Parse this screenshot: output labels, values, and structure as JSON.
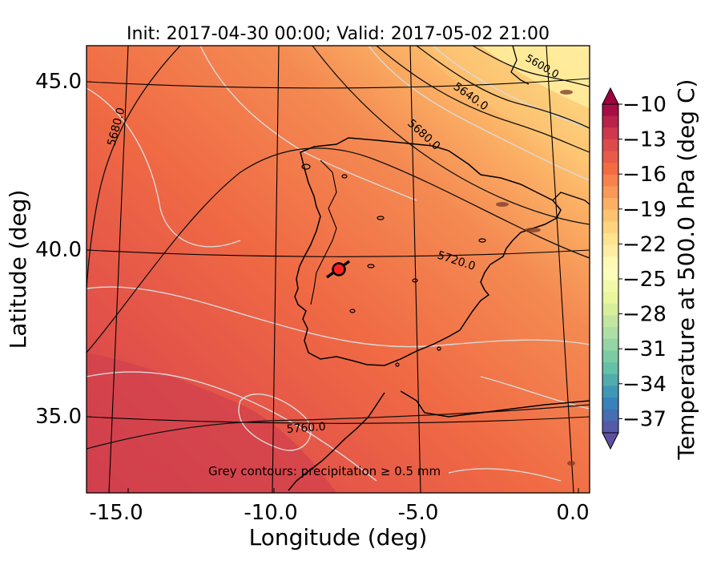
{
  "title": "Init: 2017-04-30 00:00; Valid: 2017-05-02 21:00",
  "x_axis": {
    "label": "Longitude (deg)",
    "ticks": [
      "-15.0",
      "-10.0",
      "-5.0",
      "0.0"
    ]
  },
  "y_axis": {
    "label": "Latitude (deg)",
    "ticks": [
      "45.0",
      "40.0",
      "35.0"
    ]
  },
  "colorbar": {
    "label": "Temperature at 500.0 hPa (deg C)",
    "ticks": [
      "−10",
      "−13",
      "−16",
      "−19",
      "−22",
      "−25",
      "−28",
      "−31",
      "−34",
      "−37"
    ],
    "colormap": "Spectral"
  },
  "contour_labels": {
    "c5600": "5600.0",
    "c5640": "5640.0",
    "c5680_east": "5680.0",
    "c5680_west": "5680.0",
    "c5720": "5720.0",
    "c5760": "5760.0"
  },
  "annotation": "Grey contours: precipitation  ≥  0.5 mm",
  "colors": {
    "warm_dark": "#c8364a",
    "warm_mid": "#f07848",
    "warm_light": "#fcb366",
    "cool_light": "#fff2a8",
    "marker": "#ff2020"
  }
}
